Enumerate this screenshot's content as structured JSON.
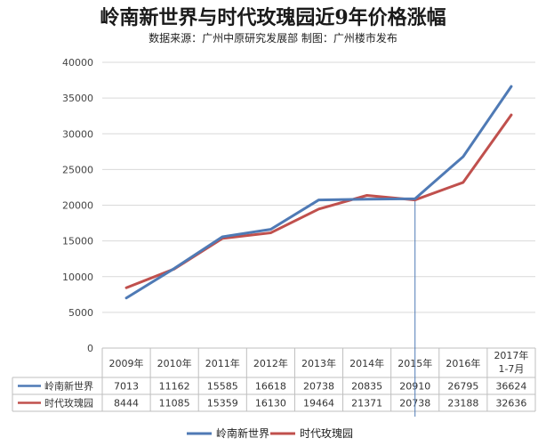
{
  "chart_data": {
    "type": "line",
    "title": "岭南新世界与时代玫瑰园近9年价格涨幅",
    "subtitle": "数据来源：广州中原研究发展部 制图：广州楼市发布",
    "categories": [
      "2009年",
      "2010年",
      "2011年",
      "2012年",
      "2013年",
      "2014年",
      "2015年",
      "2016年",
      "2017年1-7月"
    ],
    "series": [
      {
        "name": "岭南新世界",
        "color": "#4f7ab5",
        "values": [
          7013,
          11162,
          15585,
          16618,
          20738,
          20835,
          20910,
          26795,
          36624
        ]
      },
      {
        "name": "时代玫瑰园",
        "color": "#c0504d",
        "values": [
          8444,
          11085,
          15359,
          16130,
          19464,
          21371,
          20738,
          23188,
          32636
        ]
      }
    ],
    "ylim": [
      0,
      40000
    ],
    "yticks": [
      0,
      5000,
      10000,
      15000,
      20000,
      25000,
      30000,
      35000,
      40000
    ],
    "grid": true,
    "legend": "bottom",
    "data_table": true,
    "annotation_line_category": "2015年"
  }
}
